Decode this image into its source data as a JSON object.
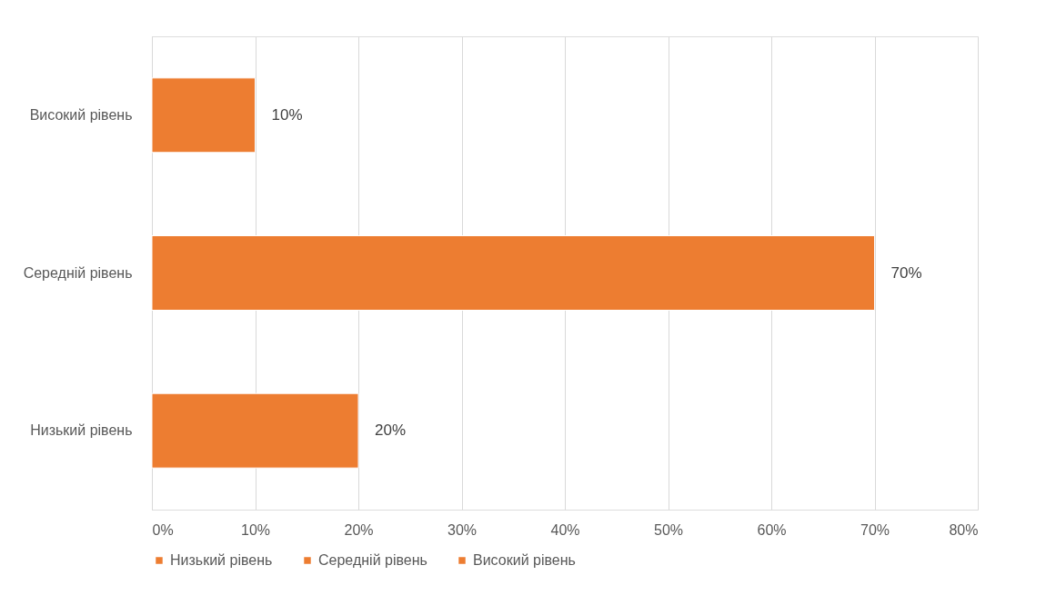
{
  "chart_data": {
    "type": "bar",
    "orientation": "horizontal",
    "categories": [
      "Високий рівень",
      "Середній рівень",
      "Низький рівень"
    ],
    "series": [
      {
        "name": "Низький рівень",
        "color": "#ed7d31",
        "values": [
          null,
          null,
          20
        ],
        "value_labels": [
          null,
          null,
          "20%"
        ]
      },
      {
        "name": "Середній рівень",
        "color": "#ed7d31",
        "values": [
          null,
          70,
          null
        ],
        "value_labels": [
          null,
          "70%",
          null
        ]
      },
      {
        "name": "Високий рівень",
        "color": "#ed7d31",
        "values": [
          10,
          null,
          null
        ],
        "value_labels": [
          "10%",
          null,
          null
        ]
      }
    ],
    "xlim": [
      0,
      80
    ],
    "xticks": [
      {
        "value": 0,
        "label": "0%"
      },
      {
        "value": 10,
        "label": "10%"
      },
      {
        "value": 20,
        "label": "20%"
      },
      {
        "value": 30,
        "label": "30%"
      },
      {
        "value": 40,
        "label": "40%"
      },
      {
        "value": 50,
        "label": "50%"
      },
      {
        "value": 60,
        "label": "60%"
      },
      {
        "value": 70,
        "label": "70%"
      },
      {
        "value": 80,
        "label": "80%"
      }
    ],
    "grid": "x",
    "legend": "bottom"
  }
}
